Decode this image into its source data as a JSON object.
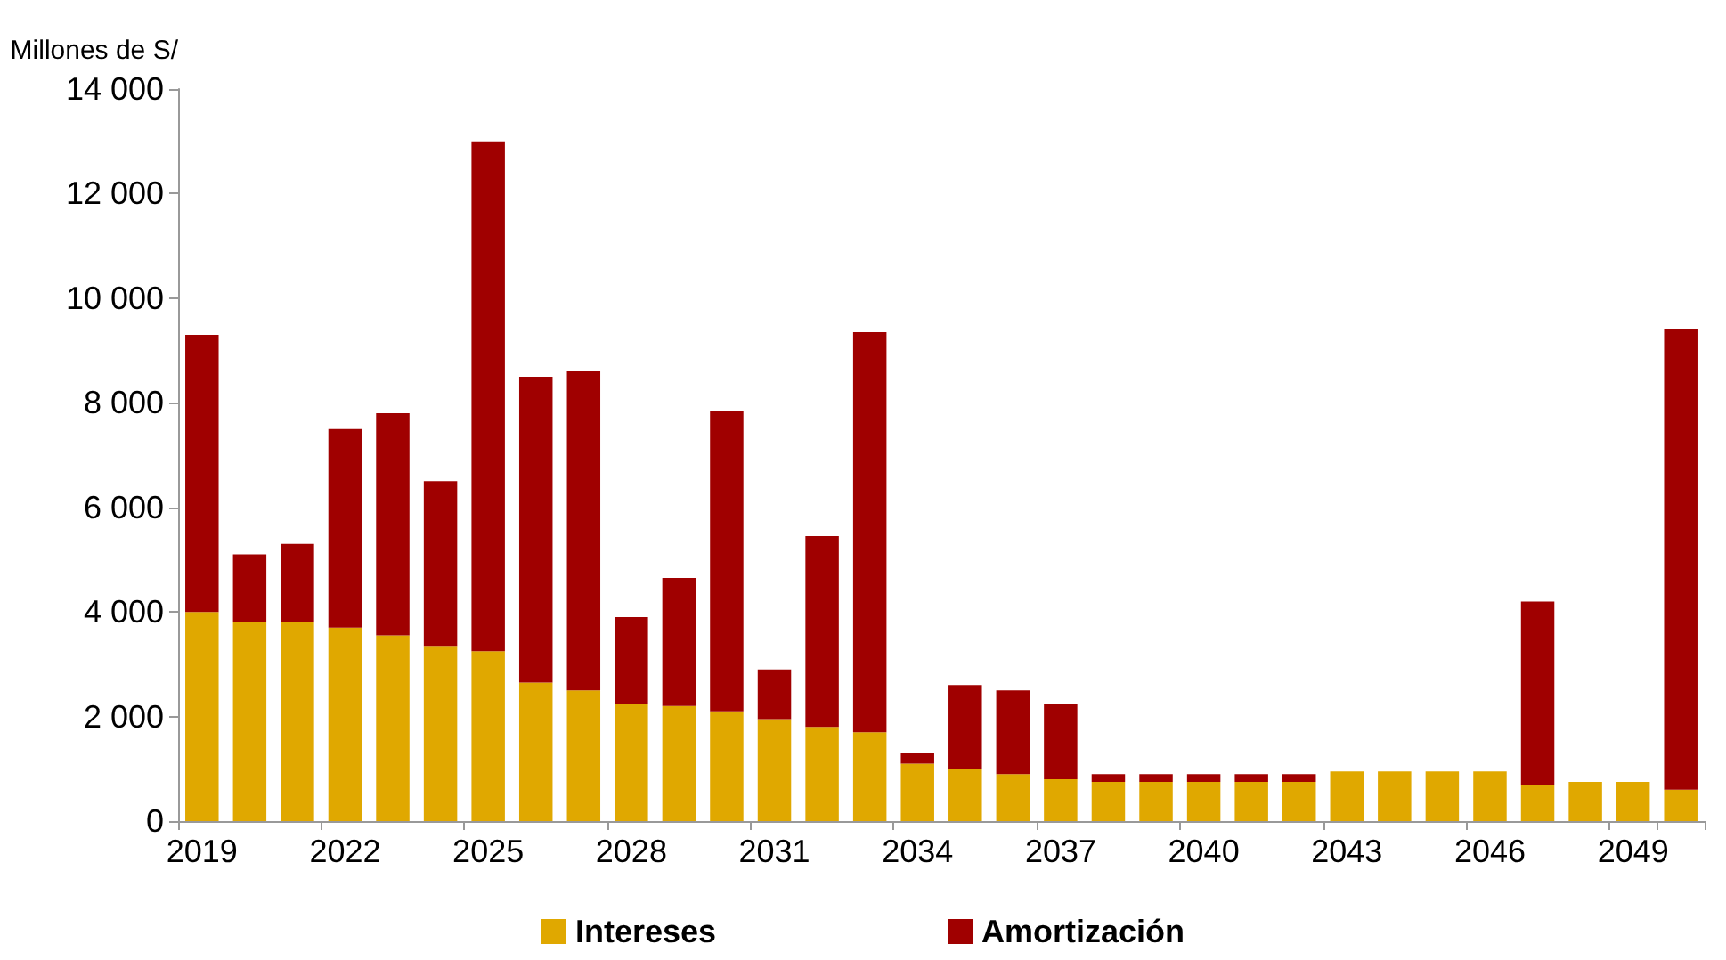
{
  "chart_data": {
    "type": "bar",
    "stacked": true,
    "ylabel": "Millones de S/",
    "categories": [
      "2019",
      null,
      null,
      "2022",
      null,
      null,
      "2025",
      null,
      null,
      "2028",
      null,
      null,
      "2031",
      null,
      null,
      "2034",
      null,
      null,
      "2037",
      null,
      null,
      "2040",
      null,
      null,
      "2043",
      null,
      null,
      "2046",
      null,
      null,
      "2049",
      null
    ],
    "series": [
      {
        "name": "Intereses",
        "color": "#e0a800",
        "values": [
          4000,
          3800,
          3800,
          3700,
          3550,
          3350,
          3250,
          2650,
          2500,
          2250,
          2200,
          2100,
          1950,
          1800,
          1700,
          1100,
          1000,
          900,
          800,
          750,
          750,
          750,
          750,
          750,
          950,
          950,
          950,
          950,
          700,
          750,
          750,
          600
        ]
      },
      {
        "name": "Amortización",
        "color": "#a00000",
        "values": [
          5300,
          1300,
          1500,
          3800,
          4250,
          3150,
          9750,
          5850,
          6100,
          1650,
          2450,
          5750,
          950,
          3650,
          7650,
          200,
          1600,
          1600,
          1450,
          150,
          150,
          150,
          150,
          150,
          null,
          null,
          null,
          null,
          3500,
          null,
          null,
          8800
        ]
      }
    ],
    "ylim": [
      0,
      14000
    ],
    "yticks": [
      {
        "value": 0,
        "label": "0"
      },
      {
        "value": 2000,
        "label": "2 000"
      },
      {
        "value": 4000,
        "label": "4 000"
      },
      {
        "value": 6000,
        "label": "6 000"
      },
      {
        "value": 8000,
        "label": "8 000"
      },
      {
        "value": 10000,
        "label": "10 000"
      },
      {
        "value": 12000,
        "label": "12 000"
      },
      {
        "value": 14000,
        "label": "14 000"
      }
    ],
    "grid": false,
    "legend": "bottom"
  }
}
